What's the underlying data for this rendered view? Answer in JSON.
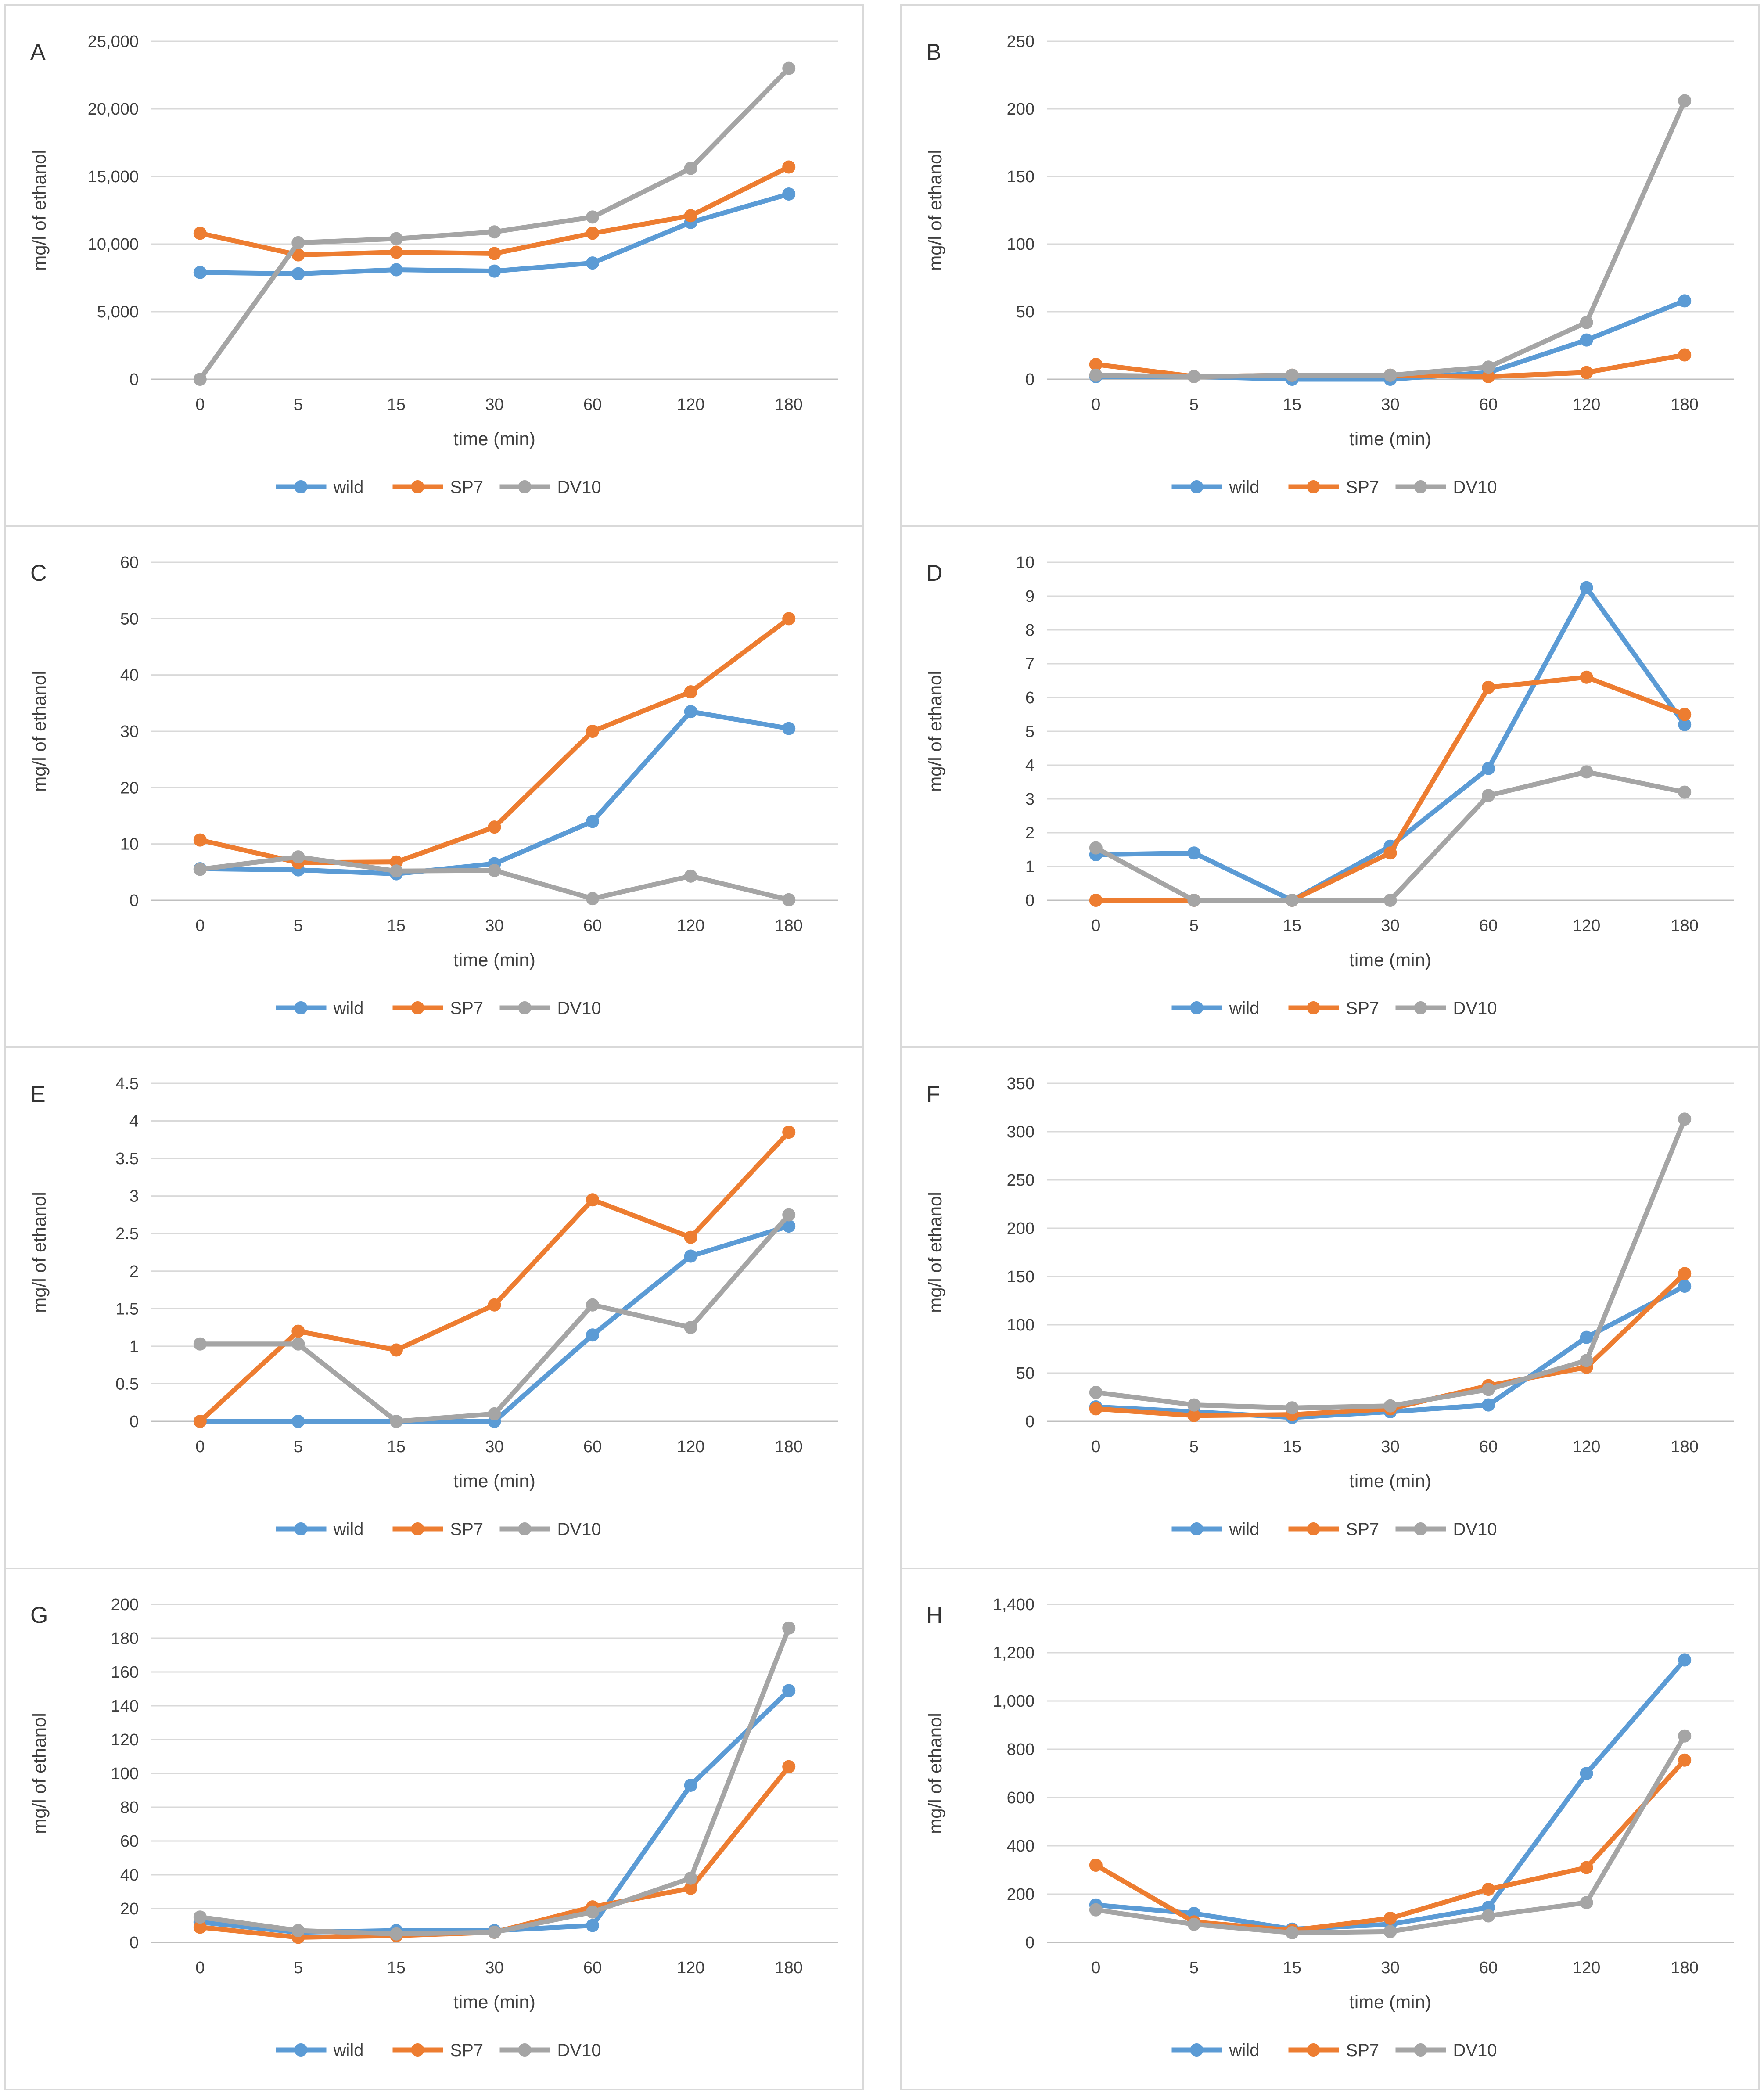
{
  "page": {
    "y_axis_label": "mg/l of ethanol",
    "x_axis_label": "time (min)",
    "legend_labels": [
      "wild",
      "SP7",
      "DV10"
    ],
    "colors": {
      "wild": "#5B9BD5",
      "SP7": "#ED7D31",
      "DV10": "#A5A5A5"
    },
    "grid_color": "#d9d9d9",
    "axis_line_color": "#bfbfbf",
    "text_color": "#404040",
    "panel_letters": [
      "A",
      "B",
      "C",
      "D",
      "E",
      "F",
      "G",
      "H"
    ]
  },
  "chart_data": [
    {
      "panel": "A",
      "type": "line",
      "xlabel": "time (min)",
      "ylabel": "mg/l of ethanol",
      "categories": [
        "0",
        "5",
        "15",
        "30",
        "60",
        "120",
        "180"
      ],
      "ylim": [
        0,
        25000
      ],
      "ytick_labels": [
        "0",
        "5,000",
        "10,000",
        "15,000",
        "20,000",
        "25,000"
      ],
      "grid": true,
      "legend_position": "bottom",
      "series": [
        {
          "name": "wild",
          "values": [
            7900,
            7800,
            8100,
            8000,
            8600,
            11600,
            13700
          ]
        },
        {
          "name": "SP7",
          "values": [
            10800,
            9200,
            9400,
            9300,
            10800,
            12100,
            15700
          ]
        },
        {
          "name": "DV10",
          "values": [
            0,
            10100,
            10400,
            10900,
            12000,
            15600,
            23000
          ]
        }
      ]
    },
    {
      "panel": "B",
      "type": "line",
      "xlabel": "time (min)",
      "ylabel": "mg/l of ethanol",
      "categories": [
        "0",
        "5",
        "15",
        "30",
        "60",
        "120",
        "180"
      ],
      "ylim": [
        0,
        250
      ],
      "ytick_labels": [
        "0",
        "50",
        "100",
        "150",
        "200",
        "250"
      ],
      "grid": true,
      "legend_position": "bottom",
      "series": [
        {
          "name": "wild",
          "values": [
            2,
            2,
            0,
            0,
            5,
            29,
            58
          ]
        },
        {
          "name": "SP7",
          "values": [
            11,
            2,
            3,
            3,
            2,
            5,
            18
          ]
        },
        {
          "name": "DV10",
          "values": [
            3,
            2,
            3,
            3,
            9,
            42,
            206
          ]
        }
      ]
    },
    {
      "panel": "C",
      "type": "line",
      "xlabel": "time (min)",
      "ylabel": "mg/l of ethanol",
      "categories": [
        "0",
        "5",
        "15",
        "30",
        "60",
        "120",
        "180"
      ],
      "ylim": [
        0,
        60
      ],
      "ytick_labels": [
        "0",
        "10",
        "20",
        "30",
        "40",
        "50",
        "60"
      ],
      "grid": true,
      "legend_position": "bottom",
      "series": [
        {
          "name": "wild",
          "values": [
            5.6,
            5.4,
            4.7,
            6.5,
            14,
            33.5,
            30.5
          ]
        },
        {
          "name": "SP7",
          "values": [
            10.7,
            6.7,
            6.8,
            13,
            30,
            37,
            50
          ]
        },
        {
          "name": "DV10",
          "values": [
            5.5,
            7.7,
            5.2,
            5.3,
            0.3,
            4.3,
            0.1
          ]
        }
      ]
    },
    {
      "panel": "D",
      "type": "line",
      "xlabel": "time (min)",
      "ylabel": "mg/l of ethanol",
      "categories": [
        "0",
        "5",
        "15",
        "30",
        "60",
        "120",
        "180"
      ],
      "ylim": [
        0,
        10
      ],
      "ytick_labels": [
        "0",
        "1",
        "2",
        "3",
        "4",
        "5",
        "6",
        "7",
        "8",
        "9",
        "10"
      ],
      "grid": true,
      "legend_position": "bottom",
      "series": [
        {
          "name": "wild",
          "values": [
            1.35,
            1.4,
            0,
            1.6,
            3.9,
            9.25,
            5.2
          ]
        },
        {
          "name": "SP7",
          "values": [
            0,
            0,
            0,
            1.4,
            6.3,
            6.6,
            5.5
          ]
        },
        {
          "name": "DV10",
          "values": [
            1.55,
            0,
            0,
            0,
            3.1,
            3.8,
            3.2
          ]
        }
      ]
    },
    {
      "panel": "E",
      "type": "line",
      "xlabel": "time (min)",
      "ylabel": "mg/l of ethanol",
      "categories": [
        "0",
        "5",
        "15",
        "30",
        "60",
        "120",
        "180"
      ],
      "ylim": [
        0,
        4.5
      ],
      "ytick_labels": [
        "0",
        "0.5",
        "1",
        "1.5",
        "2",
        "2.5",
        "3",
        "3.5",
        "4",
        "4.5"
      ],
      "grid": true,
      "legend_position": "bottom",
      "series": [
        {
          "name": "wild",
          "values": [
            0,
            0,
            0,
            0,
            1.15,
            2.2,
            2.6
          ]
        },
        {
          "name": "SP7",
          "values": [
            0,
            1.2,
            0.95,
            1.55,
            2.95,
            2.45,
            3.85
          ]
        },
        {
          "name": "DV10",
          "values": [
            1.03,
            1.03,
            0,
            0.1,
            1.55,
            1.25,
            2.75
          ]
        }
      ]
    },
    {
      "panel": "F",
      "type": "line",
      "xlabel": "time (min)",
      "ylabel": "mg/l of ethanol",
      "categories": [
        "0",
        "5",
        "15",
        "30",
        "60",
        "120",
        "180"
      ],
      "ylim": [
        0,
        350
      ],
      "ytick_labels": [
        "0",
        "50",
        "100",
        "150",
        "200",
        "250",
        "300",
        "350"
      ],
      "grid": true,
      "legend_position": "bottom",
      "series": [
        {
          "name": "wild",
          "values": [
            15,
            10,
            4,
            10,
            17,
            87,
            140
          ]
        },
        {
          "name": "SP7",
          "values": [
            13,
            6,
            7,
            13,
            37,
            56,
            153
          ]
        },
        {
          "name": "DV10",
          "values": [
            30,
            17,
            14,
            16,
            33,
            63,
            313
          ]
        }
      ]
    },
    {
      "panel": "G",
      "type": "line",
      "xlabel": "time (min)",
      "ylabel": "mg/l of ethanol",
      "categories": [
        "0",
        "5",
        "15",
        "30",
        "60",
        "120",
        "180"
      ],
      "ylim": [
        0,
        200
      ],
      "ytick_labels": [
        "0",
        "20",
        "40",
        "60",
        "80",
        "100",
        "120",
        "140",
        "160",
        "180",
        "200"
      ],
      "grid": true,
      "legend_position": "bottom",
      "series": [
        {
          "name": "wild",
          "values": [
            12,
            6,
            7,
            7,
            10,
            93,
            149
          ]
        },
        {
          "name": "SP7",
          "values": [
            9,
            3,
            4,
            6,
            21,
            32,
            104
          ]
        },
        {
          "name": "DV10",
          "values": [
            15,
            7,
            5,
            6,
            18,
            38,
            186
          ]
        }
      ]
    },
    {
      "panel": "H",
      "type": "line",
      "xlabel": "time (min)",
      "ylabel": "mg/l of ethanol",
      "categories": [
        "0",
        "5",
        "15",
        "30",
        "60",
        "120",
        "180"
      ],
      "ylim": [
        0,
        1400
      ],
      "ytick_labels": [
        "0",
        "200",
        "400",
        "600",
        "800",
        "1,000",
        "1,200",
        "1,400"
      ],
      "grid": true,
      "legend_position": "bottom",
      "series": [
        {
          "name": "wild",
          "values": [
            155,
            120,
            55,
            75,
            145,
            700,
            1170
          ]
        },
        {
          "name": "SP7",
          "values": [
            320,
            85,
            50,
            100,
            220,
            310,
            755
          ]
        },
        {
          "name": "DV10",
          "values": [
            135,
            75,
            40,
            45,
            110,
            165,
            855
          ]
        }
      ]
    }
  ]
}
